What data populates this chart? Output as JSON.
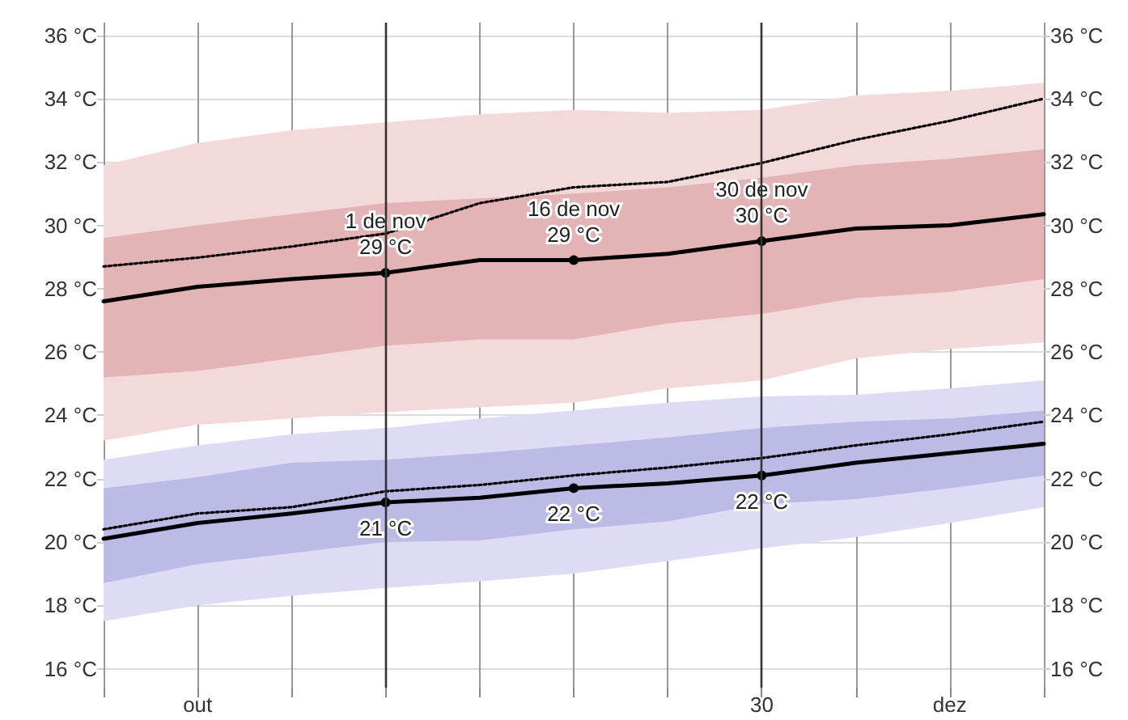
{
  "chart_data": {
    "type": "line",
    "categories": [
      null,
      "out",
      null,
      null,
      null,
      null,
      null,
      "30",
      null,
      "dez",
      null
    ],
    "series": [
      {
        "type": "area",
        "color": "#f4d9db",
        "values": [
          null,
          null,
          null,
          null,
          null,
          null,
          null,
          null,
          null,
          null,
          null
        ],
        "upper": [
          31.9,
          32.6,
          33.0,
          33.25,
          33.5,
          33.65,
          33.55,
          33.65,
          34.1,
          34.25,
          34.5
        ],
        "lower": [
          23.2,
          23.7,
          23.9,
          24.1,
          24.25,
          24.4,
          24.85,
          25.1,
          25.8,
          26.1,
          26.3
        ]
      },
      {
        "type": "area",
        "color": "#e3b3b5",
        "values": [
          null,
          null,
          null,
          null,
          null,
          null,
          null,
          null,
          null,
          null,
          null
        ],
        "upper": [
          29.6,
          30.0,
          30.35,
          30.7,
          30.85,
          31.0,
          31.2,
          31.5,
          31.9,
          32.1,
          32.4
        ],
        "lower": [
          25.2,
          25.4,
          25.8,
          26.2,
          26.4,
          26.4,
          26.9,
          27.2,
          27.7,
          27.9,
          28.3
        ]
      },
      {
        "type": "area",
        "color": "#dddcf4",
        "values": [
          null,
          null,
          null,
          null,
          null,
          null,
          null,
          null,
          null,
          null,
          null
        ],
        "upper": [
          22.6,
          23.05,
          23.4,
          23.6,
          23.9,
          24.15,
          24.4,
          24.6,
          24.65,
          24.85,
          25.1
        ],
        "lower": [
          17.5,
          18.0,
          18.3,
          18.55,
          18.75,
          19.0,
          19.4,
          19.8,
          20.15,
          20.6,
          21.1
        ]
      },
      {
        "type": "area",
        "color": "#bcbbe6",
        "values": [
          null,
          null,
          null,
          null,
          null,
          null,
          null,
          null,
          null,
          null,
          null
        ],
        "upper": [
          21.7,
          22.05,
          22.5,
          22.6,
          22.8,
          23.05,
          23.3,
          23.6,
          23.8,
          23.9,
          24.15
        ],
        "lower": [
          18.7,
          19.3,
          19.65,
          20.0,
          20.05,
          20.4,
          20.65,
          21.2,
          21.35,
          21.7,
          22.1
        ]
      },
      {
        "color": "#000000",
        "line_style": "solid",
        "values": [
          27.6,
          28.06,
          28.3,
          28.5,
          28.9,
          28.9,
          29.1,
          29.5,
          29.9,
          30.0,
          30.35
        ],
        "value_labels": [
          null,
          null,
          null,
          "1 de nov\n29 °C",
          null,
          "16 de nov\n29 °C",
          null,
          "30 de nov\n30 °C",
          null,
          null,
          null
        ]
      },
      {
        "color": "#000000",
        "line_style": "dotted",
        "values": [
          28.7,
          28.98,
          29.33,
          29.74,
          30.7,
          31.2,
          31.37,
          31.97,
          32.7,
          33.3,
          34.0
        ]
      },
      {
        "color": "#000000",
        "line_style": "solid",
        "values": [
          20.1,
          20.6,
          20.9,
          21.25,
          21.4,
          21.7,
          21.85,
          22.1,
          22.5,
          22.8,
          23.1
        ],
        "value_labels": [
          null,
          null,
          null,
          "21 °C",
          null,
          "22 °C",
          null,
          "22 °C",
          null,
          null,
          null
        ]
      },
      {
        "color": "#000000",
        "line_style": "dotted",
        "values": [
          20.4,
          20.9,
          21.1,
          21.6,
          21.8,
          22.1,
          22.35,
          22.65,
          23.05,
          23.4,
          23.8
        ]
      }
    ],
    "ylim": [
      15.4,
      36.4
    ],
    "yticks": [
      {
        "value": 16,
        "label": "16 °C"
      },
      {
        "value": 18,
        "label": "18 °C"
      },
      {
        "value": 20,
        "label": "20 °C"
      },
      {
        "value": 22,
        "label": "22 °C"
      },
      {
        "value": 24,
        "label": "24 °C"
      },
      {
        "value": 26,
        "label": "26 °C"
      },
      {
        "value": 28,
        "label": "28 °C"
      },
      {
        "value": 30,
        "label": "30 °C"
      },
      {
        "value": 32,
        "label": "32 °C"
      },
      {
        "value": 34,
        "label": "34 °C"
      },
      {
        "value": 36,
        "label": "36 °C"
      }
    ],
    "y2lim": [
      15.4,
      36.4
    ],
    "y2ticks": [
      {
        "value": 16,
        "label": "16 °C"
      },
      {
        "value": 18,
        "label": "18 °C"
      },
      {
        "value": 20,
        "label": "20 °C"
      },
      {
        "value": 22,
        "label": "22 °C"
      },
      {
        "value": 24,
        "label": "24 °C"
      },
      {
        "value": 26,
        "label": "26 °C"
      },
      {
        "value": 28,
        "label": "28 °C"
      },
      {
        "value": 30,
        "label": "30 °C"
      },
      {
        "value": 32,
        "label": "32 °C"
      },
      {
        "value": 34,
        "label": "34 °C"
      },
      {
        "value": 36,
        "label": "36 °C"
      }
    ],
    "grid": true,
    "marker": "none"
  }
}
